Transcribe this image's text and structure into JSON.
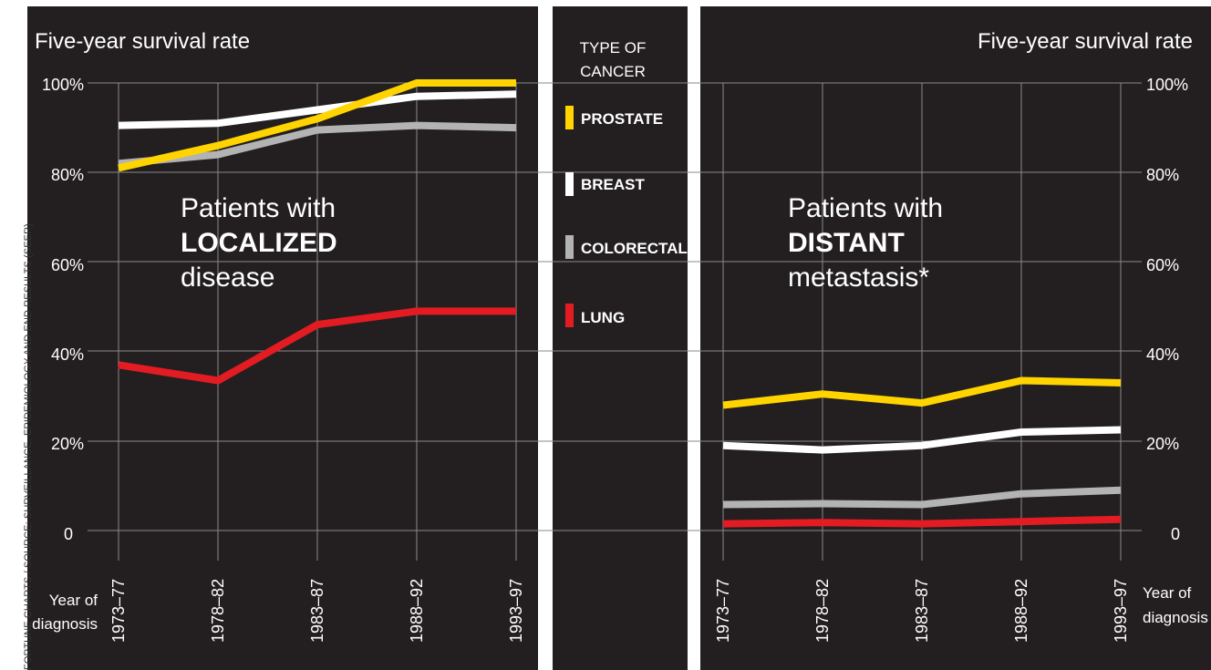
{
  "credit": "FORTUNE CHARTS / SOURCE: SURVEILLANCE, EPIDEMIOLOGY AND END RESULTS (SEER)",
  "colors": {
    "panel": "#231f20",
    "grid": "#8a8a8a",
    "text": "#ffffff",
    "prostate": "#ffd400",
    "breast": "#ffffff",
    "colorectal": "#b3b3b3",
    "lung": "#e31b23"
  },
  "legend": {
    "title_line1": "TYPE OF",
    "title_line2": "CANCER",
    "items": [
      {
        "label": "PROSTATE",
        "color": "#ffd400"
      },
      {
        "label": "BREAST",
        "color": "#ffffff"
      },
      {
        "label": "COLORECTAL",
        "color": "#b3b3b3"
      },
      {
        "label": "LUNG",
        "color": "#e31b23"
      }
    ]
  },
  "chart_data": [
    {
      "type": "line",
      "title": "Five-year survival rate",
      "annotation": {
        "line1": "Patients with",
        "line2": "LOCALIZED",
        "line3": "disease"
      },
      "xlabel_line1": "Year of",
      "xlabel_line2": "diagnosis",
      "categories": [
        "1973–77",
        "1978–82",
        "1983–87",
        "1988–92",
        "1993–97"
      ],
      "y_ticks": [
        "100%",
        "80%",
        "60%",
        "40%",
        "20%",
        "0"
      ],
      "ylim": [
        0,
        100
      ],
      "y_axis_side": "left",
      "grid": true,
      "series": [
        {
          "name": "PROSTATE",
          "values": [
            81,
            86,
            92,
            100,
            100
          ]
        },
        {
          "name": "BREAST",
          "values": [
            90.5,
            91,
            94,
            97,
            97.5
          ]
        },
        {
          "name": "COLORECTAL",
          "values": [
            82,
            84,
            89.5,
            90.5,
            90
          ]
        },
        {
          "name": "LUNG",
          "values": [
            37,
            33.5,
            46,
            49,
            49
          ]
        }
      ]
    },
    {
      "type": "line",
      "title": "Five-year survival rate",
      "annotation": {
        "line1": "Patients with",
        "line2": "DISTANT",
        "line3": "metastasis*"
      },
      "xlabel_line1": "Year of",
      "xlabel_line2": "diagnosis",
      "categories": [
        "1973–77",
        "1978–82",
        "1983–87",
        "1988–92",
        "1993–97"
      ],
      "y_ticks": [
        "100%",
        "80%",
        "60%",
        "40%",
        "20%",
        "0"
      ],
      "ylim": [
        0,
        100
      ],
      "y_axis_side": "right",
      "grid": true,
      "series": [
        {
          "name": "PROSTATE",
          "values": [
            28,
            30.5,
            28.5,
            33.5,
            33
          ]
        },
        {
          "name": "BREAST",
          "values": [
            19,
            18,
            19,
            22,
            22.5
          ]
        },
        {
          "name": "COLORECTAL",
          "values": [
            5.8,
            6,
            5.8,
            8.2,
            9
          ]
        },
        {
          "name": "LUNG",
          "values": [
            1.5,
            1.8,
            1.5,
            2,
            2.5
          ]
        }
      ]
    }
  ]
}
